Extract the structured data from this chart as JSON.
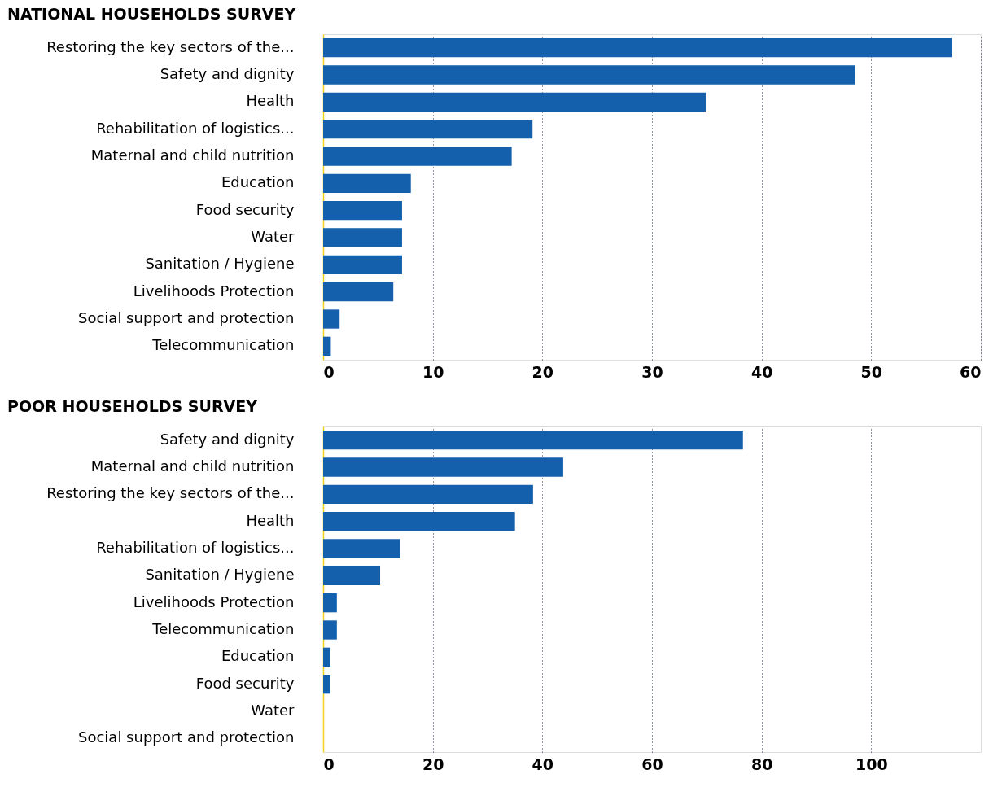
{
  "chart_data": [
    {
      "type": "bar",
      "orientation": "horizontal",
      "title": "NATIONAL HOUSEHOLDS SURVEY",
      "color": "#1560ad",
      "grid": "x",
      "categories": [
        "Restoring the key sectors of the...",
        "Safety and dignity",
        "Health",
        "Rehabilitation of logistics...",
        "Maternal and child nutrition",
        "Education",
        "Food security",
        "Water",
        "Sanitation / Hygiene",
        "Livelihoods Protection",
        "Social support and protection",
        "Telecommunication"
      ],
      "values": [
        57.4,
        48.5,
        34.9,
        19.1,
        17.2,
        8.0,
        7.2,
        7.2,
        7.2,
        6.4,
        1.5,
        0.7
      ],
      "xlim": [
        0,
        60
      ],
      "xticks": [
        0,
        10,
        20,
        30,
        40,
        50,
        60
      ]
    },
    {
      "type": "bar",
      "orientation": "horizontal",
      "title": "POOR HOUSEHOLDS SURVEY",
      "color": "#1560ad",
      "grid": "x",
      "categories": [
        "Safety and dignity",
        "Maternal and child nutrition",
        "Restoring the key sectors of the...",
        "Health",
        "Rehabilitation of logistics...",
        "Sanitation / Hygiene",
        "Livelihoods Protection",
        "Telecommunication",
        "Education",
        "Food security",
        "Water",
        "Social support and protection"
      ],
      "values": [
        76.6,
        43.8,
        38.3,
        35.0,
        14.1,
        10.4,
        2.5,
        2.5,
        1.3,
        1.3,
        0,
        0
      ],
      "xlim": [
        0,
        120
      ],
      "xticks": [
        0,
        20,
        40,
        60,
        80,
        100
      ]
    }
  ]
}
